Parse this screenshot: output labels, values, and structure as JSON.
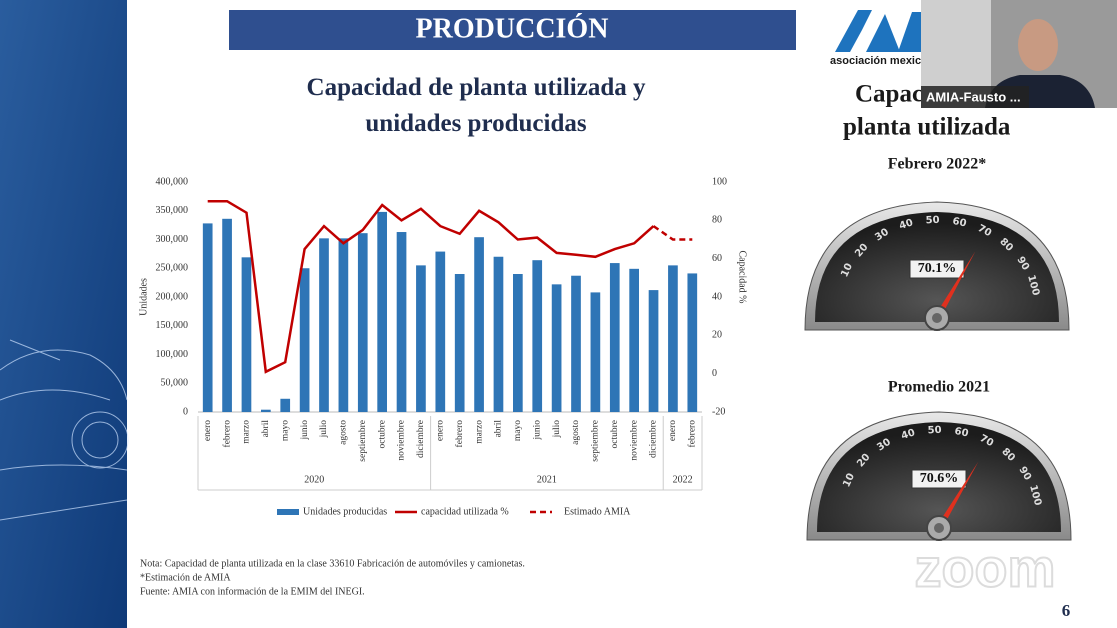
{
  "slide": {
    "title": "PRODUCCIÓN",
    "logo_text": "asociación mexic",
    "side_title": [
      "Capac",
      "planta utilizada"
    ],
    "page_number": "6",
    "watermark": "zoom",
    "notes": [
      "Nota: Capacidad de planta utilizada en la clase 33610 Fabricación de automóviles y camionetas.",
      "*Estimación de AMIA",
      "Fuente: AMIA con información de la EMIM del INEGI."
    ]
  },
  "video": {
    "participant": "AMIA-Fausto ..."
  },
  "chart_data": {
    "type": "bar",
    "title": "Capacidad de planta utilizada y unidades producidas",
    "ylabel": "Unidades",
    "y2label": "Capacidad %",
    "categories": [
      "enero",
      "febrero",
      "marzo",
      "abril",
      "mayo",
      "junio",
      "julio",
      "agosto",
      "septiembre",
      "octubre",
      "noviembre",
      "diciembre",
      "enero",
      "febrero",
      "marzo",
      "abril",
      "mayo",
      "junio",
      "julio",
      "agosto",
      "septiembre",
      "octubre",
      "noviembre",
      "diciembre",
      "enero",
      "febrero"
    ],
    "groups": [
      {
        "label": "2020",
        "months": 12
      },
      {
        "label": "2021",
        "months": 12
      },
      {
        "label": "2022",
        "months": 2
      }
    ],
    "ylim": [
      0,
      400000
    ],
    "yticks": [
      0,
      {
        "value": 50000,
        "label": "50,000"
      },
      {
        "value": 100000,
        "label": "100,000"
      },
      {
        "value": 150000,
        "label": "150,000"
      },
      {
        "value": 200000,
        "label": "200,000"
      },
      {
        "value": 250000,
        "label": "250,000"
      },
      {
        "value": 300000,
        "label": "300,000"
      },
      {
        "value": 350000,
        "label": "350,000"
      },
      {
        "value": 400000,
        "label": "400,000"
      }
    ],
    "y2lim": [
      -20,
      100
    ],
    "y2ticks": [
      -20,
      0,
      20,
      40,
      60,
      80,
      100
    ],
    "legend": "bottom",
    "series": [
      {
        "name": "Unidades producidas",
        "type": "bar",
        "color": "#2e75b6",
        "values": [
          328000,
          336000,
          269000,
          4000,
          23000,
          250000,
          302000,
          302000,
          311000,
          348000,
          313000,
          255000,
          279000,
          240000,
          304000,
          270000,
          240000,
          264000,
          222000,
          237000,
          208000,
          259000,
          249000,
          212000,
          255000,
          241000
        ]
      },
      {
        "name": "capacidad utilizada %",
        "type": "line",
        "axis": "y2",
        "color": "#c00000",
        "values": [
          90,
          90,
          84,
          1,
          6,
          65,
          77,
          68,
          75,
          88,
          80,
          86,
          77,
          73,
          85,
          79,
          70,
          71,
          63,
          62,
          61,
          65,
          68,
          77,
          null,
          null
        ]
      },
      {
        "name": "Estimado AMIA",
        "type": "line",
        "axis": "y2",
        "dashed": true,
        "color": "#c00000",
        "values": [
          null,
          null,
          null,
          null,
          null,
          null,
          null,
          null,
          null,
          null,
          null,
          null,
          null,
          null,
          null,
          null,
          null,
          null,
          null,
          null,
          null,
          null,
          null,
          77,
          70,
          70
        ]
      }
    ]
  },
  "gauge_ticks": [
    10,
    20,
    30,
    40,
    50,
    60,
    70,
    80,
    90,
    100
  ],
  "gauges": [
    {
      "title": "Febrero 2022*",
      "value": 70.1,
      "value_label": "70.1%"
    },
    {
      "title": "Promedio 2021",
      "value": 70.6,
      "value_label": "70.6%"
    }
  ]
}
